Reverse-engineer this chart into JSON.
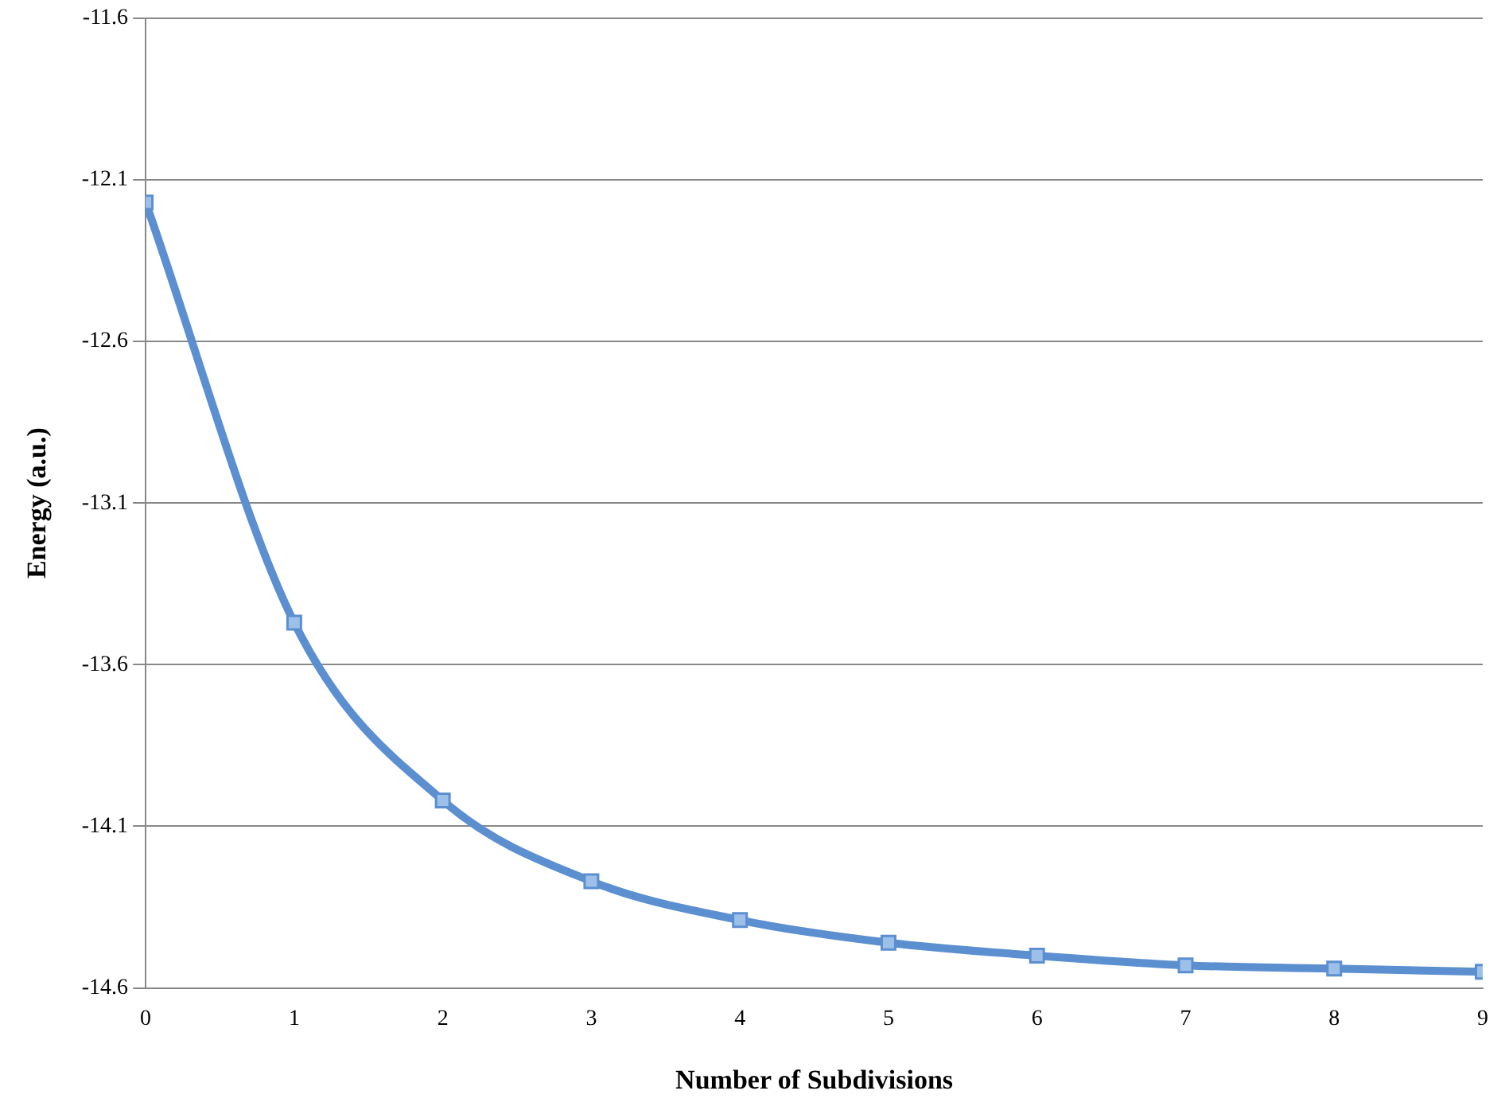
{
  "chart_data": {
    "type": "line",
    "xlabel": "Number of Subdivisions",
    "ylabel": "Energy (a.u.)",
    "x": [
      0,
      1,
      2,
      3,
      4,
      5,
      6,
      7,
      8,
      9
    ],
    "series": [
      {
        "color": "#5b8fd0",
        "values": [
          -12.17,
          -13.47,
          -14.02,
          -14.27,
          -14.39,
          -14.46,
          -14.5,
          -14.53,
          -14.54,
          -14.55
        ]
      }
    ],
    "xlim": [
      0,
      9
    ],
    "xticks": [
      0,
      1,
      2,
      3,
      4,
      5,
      6,
      7,
      8,
      9
    ],
    "ylim": [
      -14.6,
      -11.6
    ],
    "yticks": [
      -14.6,
      -14.1,
      -13.6,
      -13.1,
      -12.6,
      -12.1,
      -11.6
    ],
    "grid": "y",
    "legend": false,
    "marker": "square",
    "line_style": "solid"
  }
}
